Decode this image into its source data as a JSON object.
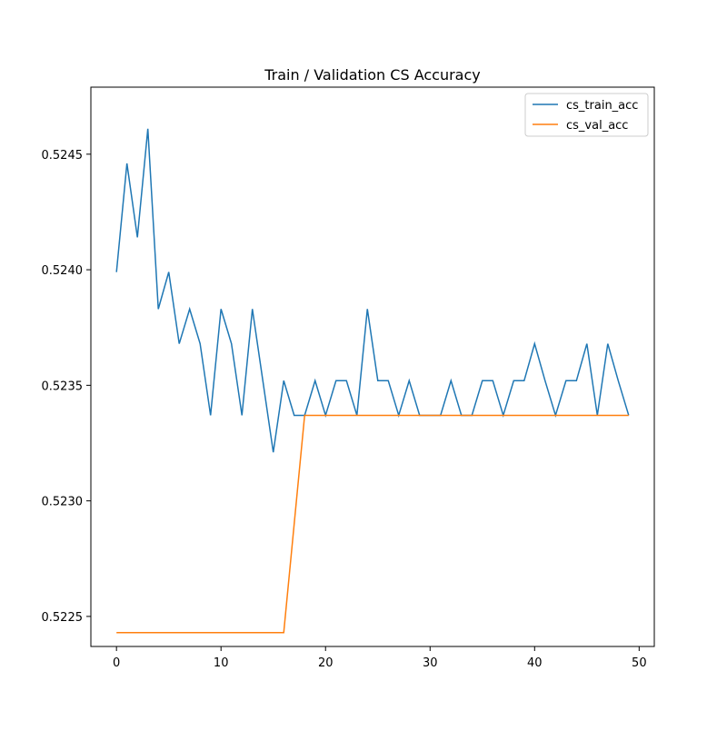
{
  "chart_data": {
    "type": "line",
    "title": "Train / Validation CS Accuracy",
    "xlabel": "",
    "ylabel": "",
    "xlim": [
      -2.45,
      51.45
    ],
    "ylim": [
      0.52237,
      0.52479
    ],
    "x_ticks": [
      0,
      10,
      20,
      30,
      40,
      50
    ],
    "x_tick_labels": [
      "0",
      "10",
      "20",
      "30",
      "40",
      "50"
    ],
    "y_ticks": [
      0.5225,
      0.523,
      0.5235,
      0.524,
      0.5245
    ],
    "y_tick_labels": [
      "0.5225",
      "0.5230",
      "0.5235",
      "0.5240",
      "0.5245"
    ],
    "grid": false,
    "legend_position": "top-right",
    "x": [
      0,
      1,
      2,
      3,
      4,
      5,
      6,
      7,
      8,
      9,
      10,
      11,
      12,
      13,
      14,
      15,
      16,
      17,
      18,
      19,
      20,
      21,
      22,
      23,
      24,
      25,
      26,
      27,
      28,
      29,
      30,
      31,
      32,
      33,
      34,
      35,
      36,
      37,
      38,
      39,
      40,
      41,
      42,
      43,
      44,
      45,
      46,
      47,
      48,
      49
    ],
    "series": [
      {
        "name": "cs_train_acc",
        "color": "#1f77b4",
        "values": [
          0.52399,
          0.52446,
          0.52414,
          0.52461,
          0.52383,
          0.52399,
          0.52368,
          0.52383,
          0.52368,
          0.52337,
          0.52383,
          0.52368,
          0.52337,
          0.52383,
          0.52352,
          0.52321,
          0.52352,
          0.52337,
          0.52337,
          0.52352,
          0.52337,
          0.52352,
          0.52352,
          0.52337,
          0.52383,
          0.52352,
          0.52352,
          0.52337,
          0.52352,
          0.52337,
          0.52337,
          0.52337,
          0.52352,
          0.52337,
          0.52337,
          0.52352,
          0.52352,
          0.52337,
          0.52352,
          0.52352,
          0.52368,
          0.52352,
          0.52337,
          0.52352,
          0.52352,
          0.52368,
          0.52337,
          0.52368,
          0.52352,
          0.52337
        ]
      },
      {
        "name": "cs_val_acc",
        "color": "#ff7f0e",
        "values": [
          0.52243,
          0.52243,
          0.52243,
          0.52243,
          0.52243,
          0.52243,
          0.52243,
          0.52243,
          0.52243,
          0.52243,
          0.52243,
          0.52243,
          0.52243,
          0.52243,
          0.52243,
          0.52243,
          0.52243,
          0.5229,
          0.52337,
          0.52337,
          0.52337,
          0.52337,
          0.52337,
          0.52337,
          0.52337,
          0.52337,
          0.52337,
          0.52337,
          0.52337,
          0.52337,
          0.52337,
          0.52337,
          0.52337,
          0.52337,
          0.52337,
          0.52337,
          0.52337,
          0.52337,
          0.52337,
          0.52337,
          0.52337,
          0.52337,
          0.52337,
          0.52337,
          0.52337,
          0.52337,
          0.52337,
          0.52337,
          0.52337,
          0.52337
        ]
      }
    ]
  }
}
